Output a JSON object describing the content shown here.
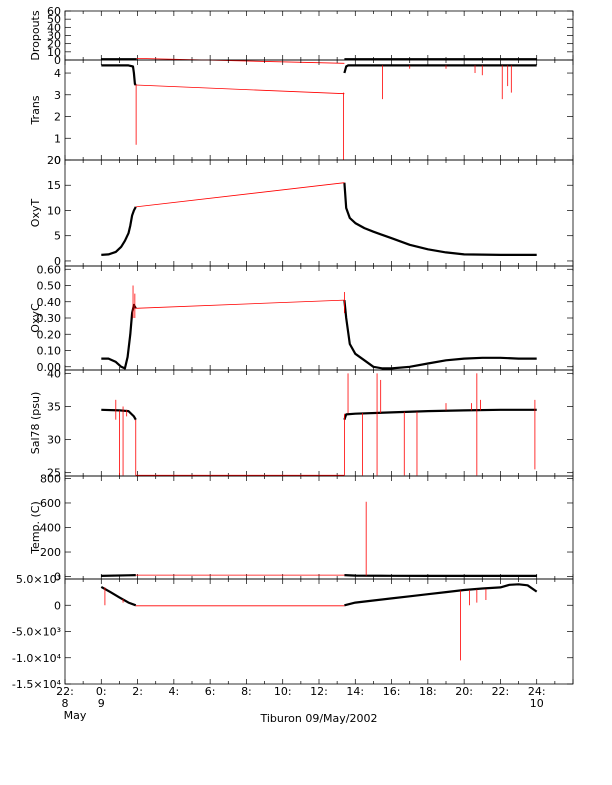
{
  "figure": {
    "caption": "Tiburon 09/May/2002",
    "colors": {
      "axis": "#000000",
      "primary": "#000000",
      "secondary": "#ff0000"
    }
  },
  "chart_data": [
    {
      "type": "line",
      "ylabel": "Dropouts",
      "ylim": [
        0,
        60
      ],
      "yticks": [
        0,
        10,
        20,
        30,
        40,
        50,
        60
      ],
      "xlim": [
        -2,
        26
      ],
      "series": [
        {
          "color": "#000000",
          "segments": [
            {
              "x": [
                0.0,
                1.95
              ],
              "y": [
                1,
                1
              ]
            },
            {
              "x": [
                13.4,
                24.0
              ],
              "y": [
                1,
                1
              ]
            }
          ]
        },
        {
          "color": "#ff0000",
          "segments": [
            {
              "x": [
                1.95,
                13.4
              ],
              "y": [
                2,
                -4
              ]
            }
          ]
        }
      ]
    },
    {
      "type": "line",
      "ylabel": "Trans",
      "ylim": [
        0,
        4.6
      ],
      "yticks": [
        0,
        1,
        2,
        3,
        4
      ],
      "xlim": [
        -2,
        26
      ],
      "series": [
        {
          "color": "#000000",
          "segments": [
            {
              "x": [
                0.0,
                1.5,
                1.75,
                1.8,
                1.85,
                1.9
              ],
              "y": [
                4.35,
                4.35,
                4.3,
                4.0,
                3.5,
                3.45
              ]
            },
            {
              "x": [
                13.4,
                13.5,
                13.6,
                14.0,
                24.0
              ],
              "y": [
                4.0,
                4.3,
                4.35,
                4.35,
                4.35
              ]
            }
          ]
        },
        {
          "color": "#ff0000",
          "segments": [
            {
              "x": [
                1.9,
                13.4
              ],
              "y": [
                3.45,
                3.05
              ]
            }
          ]
        }
      ],
      "spikes": [
        {
          "color": "#ff0000",
          "x": [
            1.92,
            13.35,
            15.5,
            17.0,
            19.0,
            20.6,
            21.0,
            22.1,
            22.4,
            22.6
          ],
          "top": [
            3.45,
            3.1,
            4.35,
            4.35,
            4.35,
            4.35,
            4.35,
            4.35,
            4.35,
            4.35
          ],
          "bottom": [
            0.7,
            0.0,
            2.8,
            4.2,
            4.2,
            4.0,
            3.9,
            2.8,
            3.4,
            3.1
          ]
        }
      ]
    },
    {
      "type": "line",
      "ylabel": "OxyT",
      "ylim": [
        -1,
        20
      ],
      "yticks": [
        0,
        5,
        10,
        15,
        20
      ],
      "xlim": [
        -2,
        26
      ],
      "series": [
        {
          "color": "#000000",
          "segments": [
            {
              "x": [
                0.0,
                0.4,
                0.8,
                1.1,
                1.3,
                1.5,
                1.6,
                1.7,
                1.8,
                1.9
              ],
              "y": [
                1.2,
                1.3,
                1.8,
                2.8,
                4.0,
                5.5,
                7.0,
                9.0,
                10.0,
                10.7
              ]
            },
            {
              "x": [
                13.4,
                13.5,
                13.7,
                14.0,
                14.5,
                15.0,
                16.0,
                17.0,
                18.0,
                19.0,
                20.0,
                22.0,
                24.0
              ],
              "y": [
                15.5,
                10.5,
                8.5,
                7.5,
                6.5,
                5.8,
                4.5,
                3.2,
                2.3,
                1.7,
                1.3,
                1.2,
                1.2
              ]
            }
          ]
        },
        {
          "color": "#ff0000",
          "segments": [
            {
              "x": [
                1.9,
                13.4
              ],
              "y": [
                10.7,
                15.5
              ]
            }
          ]
        }
      ]
    },
    {
      "type": "line",
      "ylabel": "OxyC",
      "ylim": [
        -0.02,
        0.62
      ],
      "yticks": [
        0.0,
        0.1,
        0.2,
        0.3,
        0.4,
        0.5,
        0.6
      ],
      "ytick_labels": [
        "0.00",
        "0.10",
        "0.20",
        "0.30",
        "0.40",
        "0.50",
        "0.60"
      ],
      "xlim": [
        -2,
        26
      ],
      "series": [
        {
          "color": "#000000",
          "segments": [
            {
              "x": [
                0.0,
                0.4,
                0.8,
                1.1,
                1.3,
                1.45,
                1.6,
                1.7,
                1.8,
                1.9
              ],
              "y": [
                0.05,
                0.05,
                0.03,
                0.0,
                -0.01,
                0.06,
                0.2,
                0.33,
                0.38,
                0.36
              ]
            },
            {
              "x": [
                13.4,
                13.5,
                13.7,
                14.0,
                14.5,
                15.0,
                15.5,
                16.0,
                17.0,
                18.0,
                19.0,
                20.0,
                21.0,
                22.0,
                23.0,
                24.0
              ],
              "y": [
                0.41,
                0.3,
                0.14,
                0.08,
                0.04,
                0.0,
                -0.01,
                -0.01,
                0.0,
                0.02,
                0.04,
                0.05,
                0.055,
                0.055,
                0.05,
                0.05
              ]
            }
          ]
        },
        {
          "color": "#ff0000",
          "segments": [
            {
              "x": [
                1.9,
                13.4
              ],
              "y": [
                0.36,
                0.41
              ]
            }
          ]
        }
      ],
      "spikes": [
        {
          "color": "#ff0000",
          "x": [
            1.75,
            1.85,
            13.4
          ],
          "top": [
            0.5,
            0.45,
            0.46
          ],
          "bottom": [
            0.3,
            0.3,
            0.33
          ]
        }
      ]
    },
    {
      "type": "line",
      "ylabel": "Sal78 (psu)",
      "ylim": [
        24.5,
        40.5
      ],
      "yticks": [
        25,
        30,
        35,
        40
      ],
      "xlim": [
        -2,
        26
      ],
      "series": [
        {
          "color": "#000000",
          "segments": [
            {
              "x": [
                0.0,
                1.0,
                1.5,
                1.8,
                1.9
              ],
              "y": [
                34.5,
                34.4,
                34.3,
                33.5,
                33.0
              ]
            },
            {
              "x": [
                13.4,
                13.5,
                14.0,
                16.0,
                18.0,
                20.0,
                22.0,
                24.0
              ],
              "y": [
                33.0,
                33.8,
                33.9,
                34.1,
                34.3,
                34.4,
                34.5,
                34.5
              ]
            }
          ]
        },
        {
          "color": "#ff0000",
          "segments": [
            {
              "x": [
                1.9,
                13.4
              ],
              "y": [
                24.6,
                24.6
              ]
            }
          ]
        }
      ],
      "spikes": [
        {
          "color": "#ff0000",
          "x": [
            0.8,
            1.0,
            1.2,
            1.4,
            1.9,
            13.4,
            13.6,
            14.4,
            15.2,
            15.4,
            16.7,
            17.4,
            19.0,
            20.4,
            20.7,
            20.9,
            21.1,
            23.9
          ],
          "top": [
            36.0,
            34.4,
            35.0,
            34.5,
            33.0,
            33.9,
            40.0,
            34.0,
            40.0,
            39.0,
            34.2,
            34.2,
            35.5,
            35.5,
            40.0,
            36.0,
            34.4,
            36.0
          ],
          "bottom": [
            33.0,
            24.6,
            24.6,
            33.5,
            24.6,
            24.6,
            34.0,
            24.6,
            24.6,
            34.0,
            24.6,
            24.6,
            34.4,
            34.4,
            24.6,
            34.4,
            34.4,
            25.5
          ]
        }
      ]
    },
    {
      "type": "line",
      "ylabel": "Temp. (C)",
      "ylim": [
        -20,
        820
      ],
      "yticks": [
        0,
        200,
        400,
        600,
        800
      ],
      "xlim": [
        -2,
        26
      ],
      "series": [
        {
          "color": "#000000",
          "segments": [
            {
              "x": [
                0.0,
                1.5,
                1.9
              ],
              "y": [
                5,
                10,
                12
              ]
            },
            {
              "x": [
                13.4,
                14.0,
                16.0,
                18.0,
                20.0,
                22.0,
                24.0
              ],
              "y": [
                12,
                8,
                6,
                5,
                5,
                5,
                5
              ]
            }
          ]
        },
        {
          "color": "#ff0000",
          "segments": [
            {
              "x": [
                1.9,
                13.4
              ],
              "y": [
                12,
                12
              ]
            }
          ]
        }
      ],
      "spikes": [
        {
          "color": "#ff0000",
          "x": [
            14.6
          ],
          "top": [
            610
          ],
          "bottom": [
            8
          ]
        }
      ]
    },
    {
      "type": "line",
      "ylabel": "",
      "ylim": [
        -15000,
        5000
      ],
      "yticks": [
        -15000,
        -10000,
        -5000,
        0,
        5000
      ],
      "ytick_labels": [
        "-1.5×10⁴",
        "-1.0×10⁴",
        "-5.0×10³",
        "0",
        "5.0×10³"
      ],
      "xlim": [
        -2,
        26
      ],
      "xticks": [
        -2,
        0,
        2,
        4,
        6,
        8,
        10,
        12,
        14,
        16,
        18,
        20,
        22,
        24
      ],
      "xtick_labels": [
        "22:",
        "0:",
        "2:",
        "4:",
        "6:",
        "8:",
        "10:",
        "12:",
        "14:",
        "16:",
        "18:",
        "20:",
        "22:",
        "24:"
      ],
      "xtick_labels_2": [
        "8",
        "9",
        "",
        "",
        "",
        "",
        "",
        "",
        "",
        "",
        "",
        "",
        "",
        "10"
      ],
      "xtick_labels_3": [
        "May",
        "",
        "",
        "",
        "",
        "",
        "",
        "",
        "",
        "",
        "",
        "",
        "",
        ""
      ],
      "series": [
        {
          "color": "#000000",
          "segments": [
            {
              "x": [
                0.0,
                0.5,
                1.0,
                1.5,
                1.9
              ],
              "y": [
                3500,
                2500,
                1500,
                500,
                0
              ]
            },
            {
              "x": [
                13.4,
                14.0,
                15.0,
                16.0,
                17.0,
                18.0,
                19.0,
                20.0,
                21.0,
                22.0,
                22.5,
                23.0,
                23.5,
                24.0
              ],
              "y": [
                0,
                500,
                900,
                1300,
                1700,
                2100,
                2500,
                2900,
                3200,
                3400,
                3900,
                4000,
                3800,
                2600
              ]
            }
          ]
        },
        {
          "color": "#ff0000",
          "segments": [
            {
              "x": [
                1.9,
                13.4
              ],
              "y": [
                -100,
                -100
              ]
            }
          ]
        }
      ],
      "spikes": [
        {
          "color": "#ff0000",
          "x": [
            0.2,
            1.2,
            19.8,
            20.3,
            20.7,
            21.2
          ],
          "top": [
            3400,
            1200,
            2800,
            2900,
            3000,
            3100
          ],
          "bottom": [
            0,
            500,
            -10500,
            0,
            500,
            1000
          ]
        }
      ]
    }
  ]
}
